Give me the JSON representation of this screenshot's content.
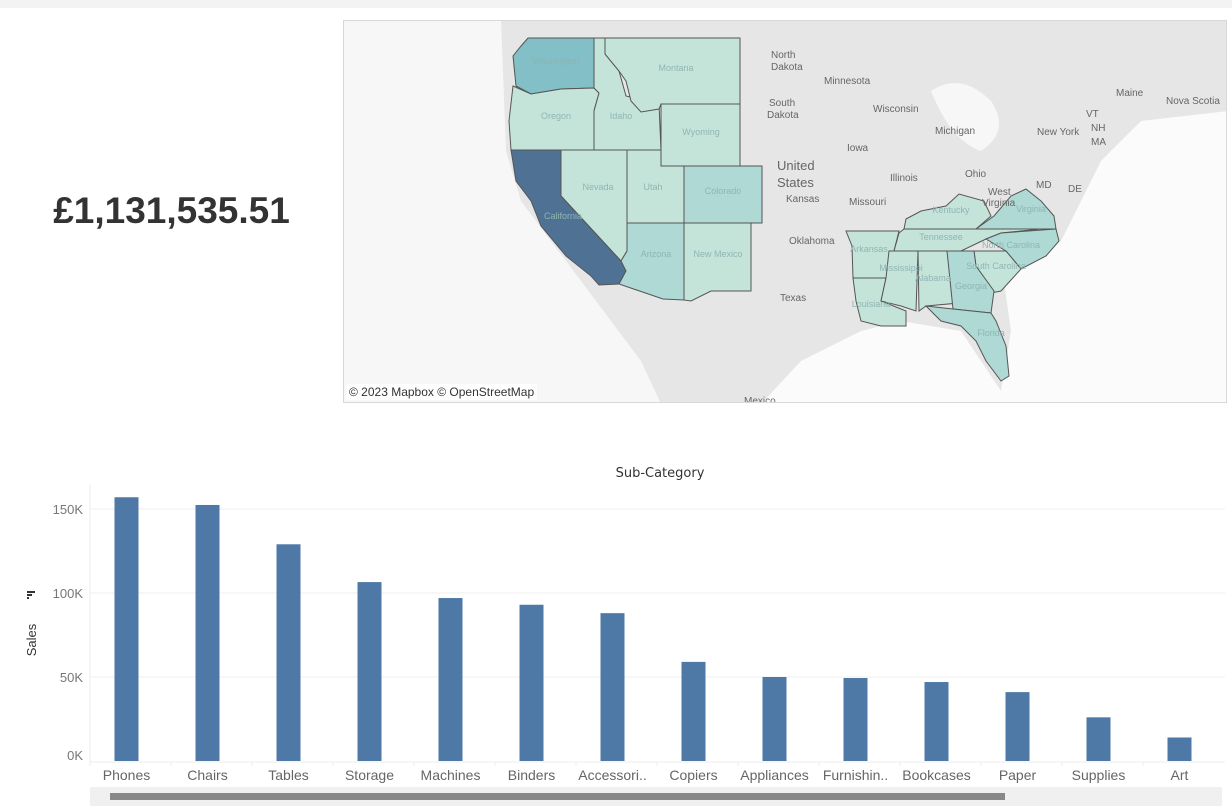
{
  "kpi": {
    "total_sales": "£1,131,535.51"
  },
  "map": {
    "attribution": "© 2023 Mapbox © OpenStreetMap",
    "colors": {
      "high": "#4f7294",
      "mid_high": "#82bfc6",
      "mid": "#aed9d4",
      "low": "#c4e4da"
    },
    "state_labels": [
      "Washington",
      "Oregon",
      "Idaho",
      "Montana",
      "Wyoming",
      "Nevada",
      "Utah",
      "Colorado",
      "California",
      "Arizona",
      "New Mexico",
      "Arkansas",
      "Louisiana",
      "Mississippi",
      "Alabama",
      "Tennessee",
      "Kentucky",
      "Virginia",
      "North Carolina",
      "South Carolina",
      "Georgia",
      "Florida"
    ],
    "base_labels": [
      "North",
      "Dakota",
      "South",
      "Dakota",
      "Minnesota",
      "Wisconsin",
      "Iowa",
      "Illinois",
      "Michigan",
      "Ohio",
      "Missouri",
      "Kansas",
      "United",
      "States",
      "Oklahoma",
      "Texas",
      "New York",
      "Maine",
      "Nova Scotia",
      "VT",
      "NH",
      "MA",
      "West",
      "Virginia",
      "MD",
      "DE",
      "Mexico"
    ]
  },
  "chart_data": {
    "type": "bar",
    "title": "Sub-Category",
    "xlabel": "Sub-Category",
    "ylabel": "Sales",
    "ylim": [
      0,
      165000
    ],
    "yticks": [
      0,
      50000,
      100000,
      150000
    ],
    "ytick_labels": [
      "0K",
      "50K",
      "100K",
      "150K"
    ],
    "categories": [
      "Phones",
      "Chairs",
      "Tables",
      "Storage",
      "Machines",
      "Binders",
      "Accessori..",
      "Copiers",
      "Appliances",
      "Furnishin..",
      "Bookcases",
      "Paper",
      "Supplies",
      "Art"
    ],
    "values": [
      157000,
      152400,
      129000,
      106500,
      97000,
      93000,
      88000,
      59000,
      50000,
      49400,
      47000,
      41000,
      26000,
      14000
    ],
    "bar_color": "#4e79a7",
    "grid": true
  }
}
